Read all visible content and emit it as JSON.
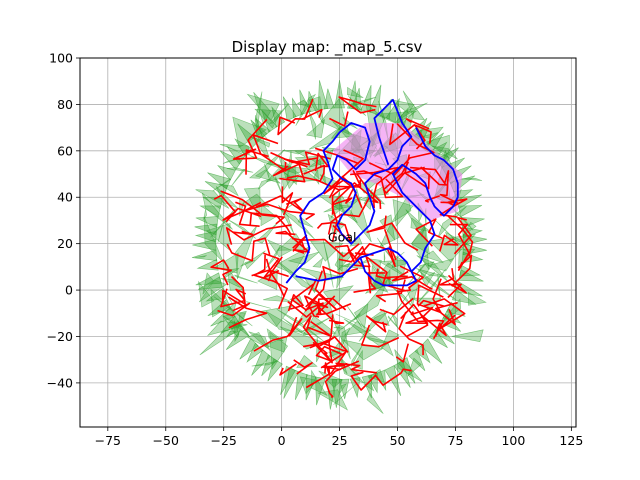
{
  "chart_data": {
    "type": "scatter",
    "title": "Display map: _map_5.csv",
    "xlabel": "",
    "ylabel": "",
    "xlim": [
      -87,
      127
    ],
    "ylim": [
      -59,
      100
    ],
    "x_ticks": [
      -75,
      -50,
      -25,
      0,
      25,
      50,
      75,
      100,
      125
    ],
    "y_ticks": [
      -40,
      -20,
      0,
      20,
      40,
      60,
      80,
      100
    ],
    "grid": true,
    "annotations": [
      {
        "text": "Goal",
        "x": 20,
        "y": 23
      }
    ],
    "obstacle_boundary": {
      "color": "#0000ff",
      "outer_path": [
        [
          2,
          3
        ],
        [
          6,
          8
        ],
        [
          10,
          12
        ],
        [
          12,
          18
        ],
        [
          10,
          25
        ],
        [
          8,
          32
        ],
        [
          12,
          38
        ],
        [
          18,
          42
        ],
        [
          22,
          48
        ],
        [
          20,
          55
        ],
        [
          18,
          60
        ],
        [
          22,
          64
        ],
        [
          25,
          68
        ],
        [
          30,
          72
        ],
        [
          36,
          70
        ],
        [
          38,
          64
        ],
        [
          36,
          56
        ],
        [
          32,
          52
        ],
        [
          28,
          56
        ],
        [
          24,
          58
        ],
        [
          22,
          52
        ],
        [
          26,
          48
        ],
        [
          30,
          46
        ],
        [
          32,
          42
        ],
        [
          30,
          36
        ],
        [
          26,
          32
        ],
        [
          24,
          28
        ],
        [
          26,
          24
        ],
        [
          30,
          20
        ],
        [
          34,
          24
        ],
        [
          38,
          28
        ],
        [
          40,
          34
        ],
        [
          38,
          40
        ],
        [
          36,
          46
        ],
        [
          40,
          50
        ],
        [
          46,
          52
        ],
        [
          50,
          56
        ],
        [
          52,
          62
        ],
        [
          56,
          66
        ],
        [
          52,
          72
        ],
        [
          48,
          82
        ],
        [
          44,
          78
        ],
        [
          40,
          74
        ],
        [
          42,
          66
        ],
        [
          44,
          60
        ],
        [
          46,
          54
        ]
      ],
      "inner_path": [
        [
          6,
          6
        ],
        [
          16,
          4
        ],
        [
          26,
          6
        ],
        [
          30,
          10
        ],
        [
          34,
          14
        ],
        [
          40,
          16
        ],
        [
          46,
          18
        ],
        [
          50,
          16
        ],
        [
          54,
          12
        ],
        [
          56,
          8
        ],
        [
          58,
          4
        ],
        [
          54,
          2
        ],
        [
          44,
          2
        ],
        [
          40,
          4
        ],
        [
          36,
          8
        ],
        [
          34,
          14
        ]
      ],
      "right_path": [
        [
          56,
          8
        ],
        [
          60,
          12
        ],
        [
          62,
          18
        ],
        [
          66,
          24
        ],
        [
          64,
          30
        ],
        [
          60,
          34
        ],
        [
          56,
          38
        ],
        [
          52,
          42
        ],
        [
          50,
          46
        ],
        [
          48,
          50
        ],
        [
          52,
          54
        ],
        [
          58,
          50
        ],
        [
          62,
          46
        ],
        [
          64,
          40
        ],
        [
          66,
          36
        ],
        [
          70,
          32
        ],
        [
          74,
          36
        ],
        [
          76,
          40
        ],
        [
          76,
          46
        ],
        [
          74,
          52
        ],
        [
          70,
          56
        ],
        [
          66,
          58
        ],
        [
          62,
          62
        ],
        [
          60,
          66
        ],
        [
          58,
          70
        ]
      ]
    },
    "region_center": [
      25,
      20
    ],
    "region_radius_x": 82,
    "region_radius_y": 70
  }
}
